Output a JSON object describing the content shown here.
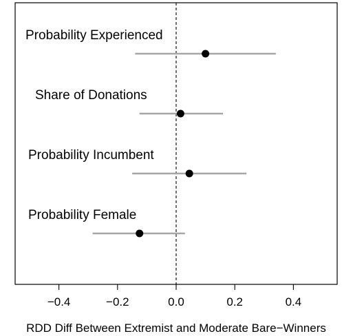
{
  "chart_data": {
    "type": "scatter",
    "title": "",
    "xlabel": "RDD Diff Between Extremist and Moderate Bare−Winners",
    "ylabel": "",
    "xlim": [
      -0.55,
      0.55
    ],
    "xticks": [
      -0.4,
      -0.2,
      0.0,
      0.2,
      0.4
    ],
    "xtick_labels": [
      "−0.4",
      "−0.2",
      "0.0",
      "0.2",
      "0.4"
    ],
    "reference_line": 0,
    "grid": false,
    "legend": "none",
    "point_color": "#000000",
    "interval_color": "#a6a6a6",
    "series": [
      {
        "name": "Probability Experienced",
        "estimate": 0.1,
        "ci": [
          -0.14,
          0.34
        ]
      },
      {
        "name": "Share of Donations",
        "estimate": 0.015,
        "ci": [
          -0.125,
          0.16
        ]
      },
      {
        "name": "Probability Incumbent",
        "estimate": 0.045,
        "ci": [
          -0.15,
          0.24
        ]
      },
      {
        "name": "Probability Female",
        "estimate": -0.125,
        "ci": [
          -0.285,
          0.03
        ]
      }
    ]
  }
}
